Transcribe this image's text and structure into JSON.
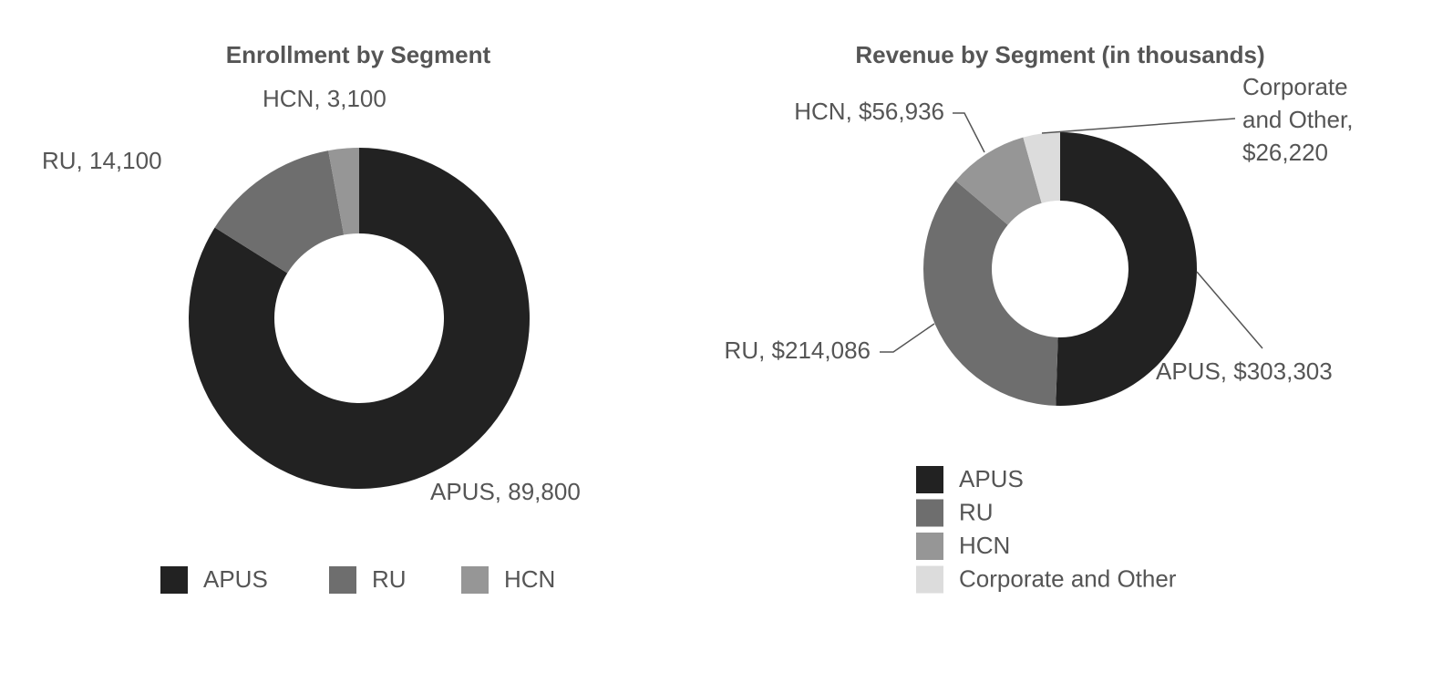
{
  "chart_data": [
    {
      "type": "pie",
      "title": "Enrollment by Segment",
      "categories": [
        "APUS",
        "RU",
        "HCN"
      ],
      "values": [
        89800,
        14100,
        3100
      ],
      "value_labels": [
        "APUS, 89,800",
        "RU, 14,100",
        "HCN, 3,100"
      ],
      "colors": [
        "#222222",
        "#6e6e6e",
        "#969696"
      ],
      "legend": "bottom"
    },
    {
      "type": "pie",
      "title": "Revenue by Segment (in thousands)",
      "categories": [
        "APUS",
        "RU",
        "HCN",
        "Corporate and Other"
      ],
      "values": [
        303303,
        214086,
        56936,
        26220
      ],
      "value_labels": [
        "APUS, $303,303",
        "RU, $214,086",
        "HCN, $56,936",
        "Corporate and Other, $26,220"
      ],
      "colors": [
        "#222222",
        "#6e6e6e",
        "#969696",
        "#dcdcdc"
      ],
      "legend": "bottom"
    }
  ]
}
